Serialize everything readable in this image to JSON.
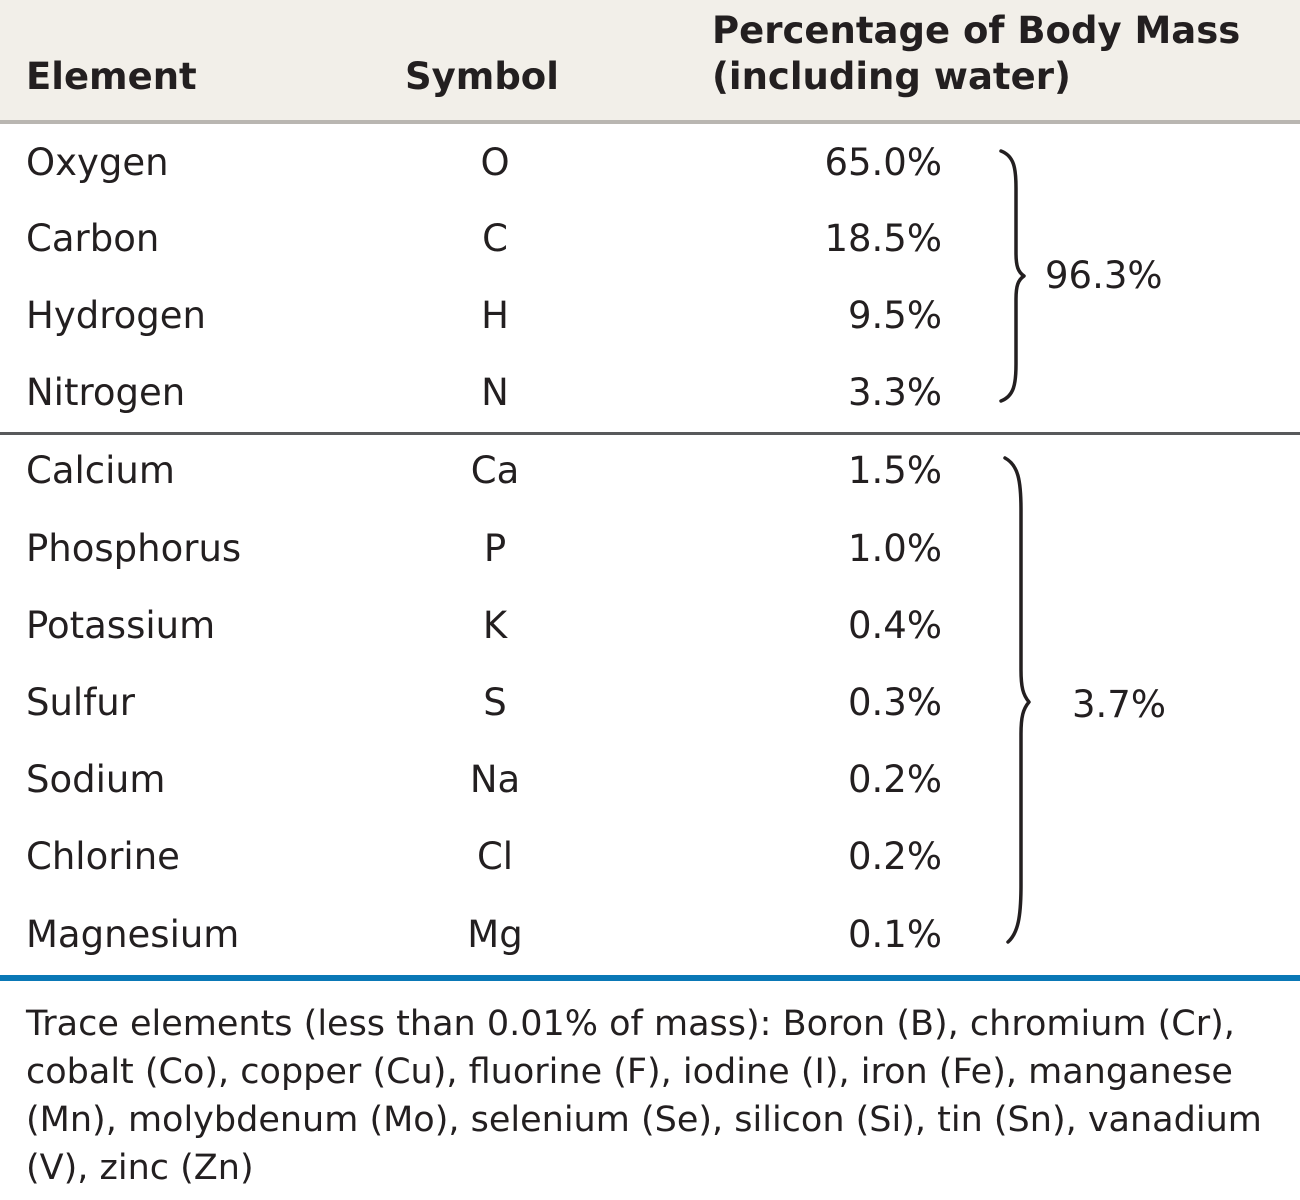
{
  "table": {
    "headers": {
      "element": "Element",
      "symbol": "Symbol",
      "percentage_line1": "Percentage of Body Mass",
      "percentage_line2": "(including water)"
    },
    "rows": [
      {
        "element": "Oxygen",
        "symbol": "O",
        "percentage": "65.0%"
      },
      {
        "element": "Carbon",
        "symbol": "C",
        "percentage": "18.5%"
      },
      {
        "element": "Hydrogen",
        "symbol": "H",
        "percentage": "9.5%"
      },
      {
        "element": "Nitrogen",
        "symbol": "N",
        "percentage": "3.3%"
      },
      {
        "element": "Calcium",
        "symbol": "Ca",
        "percentage": "1.5%"
      },
      {
        "element": "Phosphorus",
        "symbol": "P",
        "percentage": "1.0%"
      },
      {
        "element": "Potassium",
        "symbol": "K",
        "percentage": "0.4%"
      },
      {
        "element": "Sulfur",
        "symbol": "S",
        "percentage": "0.3%"
      },
      {
        "element": "Sodium",
        "symbol": "Na",
        "percentage": "0.2%"
      },
      {
        "element": "Chlorine",
        "symbol": "Cl",
        "percentage": "0.2%"
      },
      {
        "element": "Magnesium",
        "symbol": "Mg",
        "percentage": "0.1%"
      }
    ],
    "groups": [
      {
        "total": "96.3%"
      },
      {
        "total": "3.7%"
      }
    ],
    "footnote": "Trace elements (less than 0.01% of mass): Boron (B), chromium (Cr), cobalt (Co), copper (Cu), fluorine (F), iodine (I), iron (Fe), manganese (Mn), molybdenum (Mo), selenium (Se), silicon (Si), tin (Sn), vanadium (V), zinc (Zn)"
  },
  "colors": {
    "header_background": "#f2efe9",
    "text": "#231f20",
    "bottom_rule": "#0a78b6",
    "top_rule": "#b9b6b1",
    "group_rule": "#58595b"
  }
}
